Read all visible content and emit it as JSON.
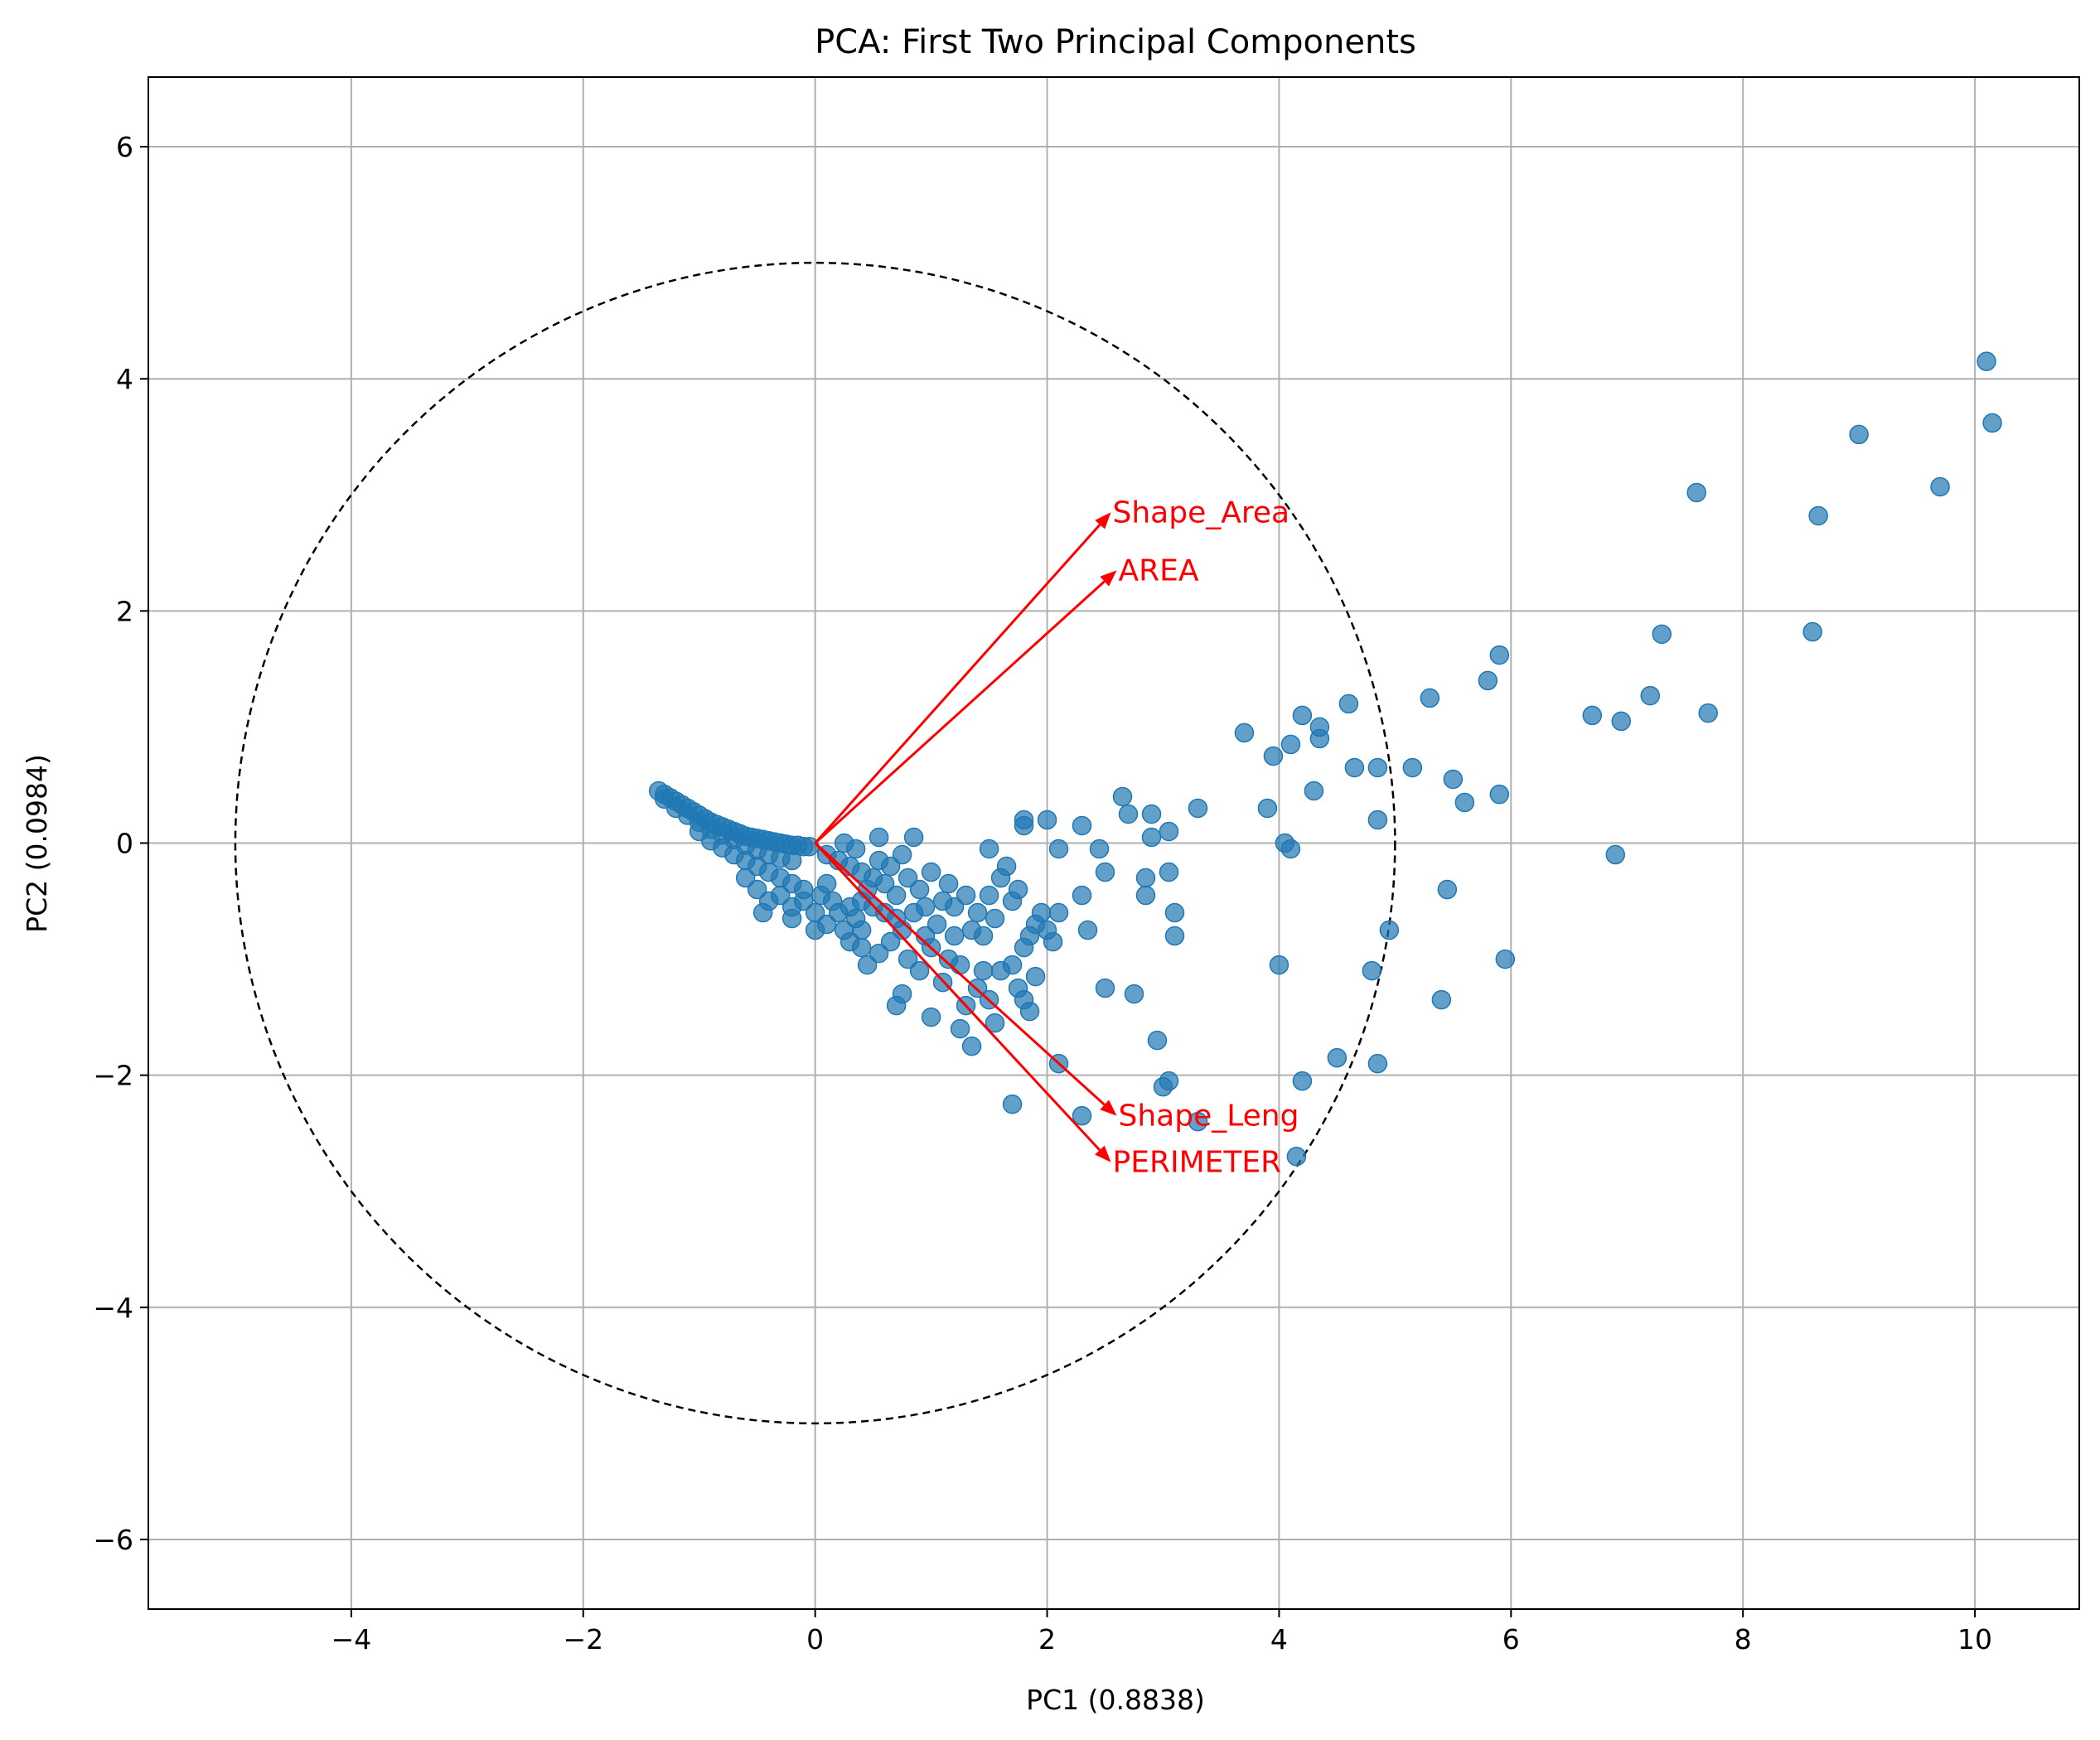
{
  "chart_data": {
    "type": "scatter",
    "title": "PCA: First Two Principal Components",
    "xlabel": "PC1 (0.8838)",
    "ylabel": "PC2 (0.0984)",
    "xlim": [
      -5.75,
      10.9
    ],
    "ylim": [
      -6.6,
      6.6
    ],
    "xticks": [
      -4,
      -2,
      0,
      2,
      4,
      6,
      8,
      10
    ],
    "yticks": [
      -6,
      -4,
      -2,
      0,
      2,
      4,
      6
    ],
    "xtick_labels": [
      "−4",
      "−2",
      "0",
      "2",
      "4",
      "6",
      "8",
      "10"
    ],
    "ytick_labels": [
      "−6",
      "−4",
      "−2",
      "0",
      "2",
      "4",
      "6"
    ],
    "grid": true,
    "point_color": "#1f77b4",
    "circle": {
      "center": [
        0,
        0
      ],
      "radius": 5,
      "style": "dashed",
      "color": "#000000"
    },
    "loadings_color": "#ff0000",
    "loadings": [
      {
        "name": "Shape_Area",
        "x": 2.55,
        "y": 2.85
      },
      {
        "name": "AREA",
        "x": 2.6,
        "y": 2.35
      },
      {
        "name": "Shape_Leng",
        "x": 2.6,
        "y": -2.35
      },
      {
        "name": "PERIMETER",
        "x": 2.55,
        "y": -2.75
      }
    ],
    "points": [
      [
        -1.35,
        0.45
      ],
      [
        -1.3,
        0.42
      ],
      [
        -1.25,
        0.39
      ],
      [
        -1.2,
        0.36
      ],
      [
        -1.15,
        0.33
      ],
      [
        -1.1,
        0.3
      ],
      [
        -1.05,
        0.27
      ],
      [
        -1.0,
        0.24
      ],
      [
        -0.95,
        0.21
      ],
      [
        -0.9,
        0.18
      ],
      [
        -0.85,
        0.16
      ],
      [
        -0.8,
        0.14
      ],
      [
        -0.75,
        0.12
      ],
      [
        -0.7,
        0.1
      ],
      [
        -0.65,
        0.08
      ],
      [
        -0.6,
        0.06
      ],
      [
        -0.55,
        0.05
      ],
      [
        -0.5,
        0.04
      ],
      [
        -0.45,
        0.03
      ],
      [
        -0.4,
        0.02
      ],
      [
        -0.35,
        0.01
      ],
      [
        -0.3,
        0.0
      ],
      [
        -0.25,
        -0.01
      ],
      [
        -0.2,
        -0.02
      ],
      [
        -0.15,
        -0.02
      ],
      [
        -0.1,
        -0.03
      ],
      [
        -0.05,
        -0.03
      ],
      [
        -1.3,
        0.38
      ],
      [
        -1.2,
        0.3
      ],
      [
        -1.1,
        0.24
      ],
      [
        -1.0,
        0.18
      ],
      [
        -0.9,
        0.12
      ],
      [
        -0.8,
        0.07
      ],
      [
        -0.7,
        0.03
      ],
      [
        -0.6,
        -0.02
      ],
      [
        -0.5,
        -0.06
      ],
      [
        -0.4,
        -0.1
      ],
      [
        -0.3,
        -0.13
      ],
      [
        -0.2,
        -0.15
      ],
      [
        -1.0,
        0.1
      ],
      [
        -0.9,
        0.02
      ],
      [
        -0.8,
        -0.04
      ],
      [
        -0.7,
        -0.1
      ],
      [
        -0.6,
        -0.15
      ],
      [
        -0.5,
        -0.2
      ],
      [
        -0.4,
        -0.25
      ],
      [
        -0.3,
        -0.3
      ],
      [
        -0.2,
        -0.35
      ],
      [
        -0.1,
        -0.4
      ],
      [
        -0.6,
        -0.3
      ],
      [
        -0.5,
        -0.4
      ],
      [
        -0.4,
        -0.5
      ],
      [
        -0.3,
        -0.45
      ],
      [
        -0.2,
        -0.55
      ],
      [
        -0.1,
        -0.5
      ],
      [
        0.0,
        -0.6
      ],
      [
        0.05,
        -0.45
      ],
      [
        0.1,
        -0.35
      ],
      [
        0.15,
        -0.5
      ],
      [
        -0.45,
        -0.6
      ],
      [
        -0.2,
        -0.65
      ],
      [
        0.0,
        -0.75
      ],
      [
        0.1,
        -0.7
      ],
      [
        0.2,
        -0.6
      ],
      [
        0.3,
        -0.55
      ],
      [
        0.25,
        -0.75
      ],
      [
        0.35,
        -0.65
      ],
      [
        0.4,
        -0.5
      ],
      [
        0.45,
        -0.4
      ],
      [
        0.1,
        -0.1
      ],
      [
        0.2,
        -0.15
      ],
      [
        0.3,
        -0.2
      ],
      [
        0.35,
        -0.05
      ],
      [
        0.4,
        -0.25
      ],
      [
        0.5,
        -0.3
      ],
      [
        0.55,
        -0.15
      ],
      [
        0.6,
        -0.35
      ],
      [
        0.65,
        -0.2
      ],
      [
        0.7,
        -0.45
      ],
      [
        0.25,
        0.0
      ],
      [
        0.55,
        0.05
      ],
      [
        0.85,
        0.05
      ],
      [
        0.75,
        -0.1
      ],
      [
        0.8,
        -0.3
      ],
      [
        0.9,
        -0.4
      ],
      [
        0.95,
        -0.55
      ],
      [
        0.5,
        -0.55
      ],
      [
        0.6,
        -0.6
      ],
      [
        0.7,
        -0.65
      ],
      [
        0.4,
        -0.9
      ],
      [
        0.45,
        -1.05
      ],
      [
        0.55,
        -0.95
      ],
      [
        0.65,
        -0.85
      ],
      [
        0.75,
        -0.75
      ],
      [
        0.8,
        -1.0
      ],
      [
        0.85,
        -0.6
      ],
      [
        0.95,
        -0.8
      ],
      [
        0.4,
        -0.75
      ],
      [
        0.3,
        -0.85
      ],
      [
        0.75,
        -1.3
      ],
      [
        0.7,
        -1.4
      ],
      [
        0.9,
        -1.1
      ],
      [
        1.0,
        -0.9
      ],
      [
        1.05,
        -0.7
      ],
      [
        1.1,
        -0.5
      ],
      [
        1.15,
        -0.35
      ],
      [
        1.0,
        -0.25
      ],
      [
        1.2,
        -0.55
      ],
      [
        1.3,
        -0.45
      ],
      [
        1.35,
        -0.75
      ],
      [
        1.4,
        -0.6
      ],
      [
        1.45,
        -0.8
      ],
      [
        1.5,
        -0.45
      ],
      [
        1.55,
        -0.65
      ],
      [
        1.6,
        -0.3
      ],
      [
        1.65,
        -0.2
      ],
      [
        1.5,
        -0.05
      ],
      [
        1.7,
        -0.5
      ],
      [
        1.75,
        -0.4
      ],
      [
        1.1,
        -1.2
      ],
      [
        1.15,
        -1.0
      ],
      [
        1.2,
        -0.8
      ],
      [
        1.25,
        -1.05
      ],
      [
        1.3,
        -1.4
      ],
      [
        1.25,
        -1.6
      ],
      [
        1.0,
        -1.5
      ],
      [
        1.4,
        -1.25
      ],
      [
        1.45,
        -1.1
      ],
      [
        1.5,
        -1.35
      ],
      [
        1.35,
        -1.75
      ],
      [
        1.55,
        -1.55
      ],
      [
        1.6,
        -1.1
      ],
      [
        1.7,
        -1.05
      ],
      [
        1.75,
        -1.25
      ],
      [
        1.8,
        -1.35
      ],
      [
        1.85,
        -1.45
      ],
      [
        1.9,
        -1.15
      ],
      [
        1.8,
        -0.9
      ],
      [
        1.85,
        -0.8
      ],
      [
        1.9,
        -0.7
      ],
      [
        1.95,
        -0.6
      ],
      [
        2.0,
        -0.75
      ],
      [
        2.05,
        -0.85
      ],
      [
        2.1,
        -0.6
      ],
      [
        1.8,
        0.15
      ],
      [
        1.8,
        0.2
      ],
      [
        2.0,
        0.2
      ],
      [
        2.1,
        -0.05
      ],
      [
        2.3,
        0.15
      ],
      [
        2.3,
        -0.45
      ],
      [
        2.35,
        -0.75
      ],
      [
        2.45,
        -0.05
      ],
      [
        2.5,
        -0.25
      ],
      [
        2.5,
        -1.25
      ],
      [
        2.65,
        0.4
      ],
      [
        2.7,
        0.25
      ],
      [
        2.75,
        -1.3
      ],
      [
        2.85,
        -0.3
      ],
      [
        2.85,
        -0.45
      ],
      [
        2.9,
        0.05
      ],
      [
        2.9,
        0.25
      ],
      [
        2.95,
        -1.7
      ],
      [
        3.0,
        -2.1
      ],
      [
        3.05,
        0.1
      ],
      [
        3.05,
        -2.05
      ],
      [
        3.1,
        -0.6
      ],
      [
        3.1,
        -0.8
      ],
      [
        3.05,
        -0.25
      ],
      [
        3.3,
        0.3
      ],
      [
        3.3,
        -2.4
      ],
      [
        2.1,
        -1.9
      ],
      [
        2.3,
        -2.35
      ],
      [
        1.7,
        -2.25
      ],
      [
        3.7,
        0.95
      ],
      [
        3.9,
        0.3
      ],
      [
        3.95,
        0.75
      ],
      [
        4.0,
        -1.05
      ],
      [
        4.05,
        0.0
      ],
      [
        4.1,
        0.85
      ],
      [
        4.1,
        -0.05
      ],
      [
        4.15,
        -2.7
      ],
      [
        4.2,
        -2.05
      ],
      [
        4.2,
        1.1
      ],
      [
        4.3,
        0.45
      ],
      [
        4.35,
        0.9
      ],
      [
        4.35,
        1.0
      ],
      [
        4.5,
        -1.85
      ],
      [
        4.6,
        1.2
      ],
      [
        4.65,
        0.65
      ],
      [
        4.8,
        -1.1
      ],
      [
        4.85,
        0.2
      ],
      [
        4.85,
        0.65
      ],
      [
        4.85,
        -1.9
      ],
      [
        4.95,
        -0.75
      ],
      [
        5.15,
        0.65
      ],
      [
        5.3,
        1.25
      ],
      [
        5.4,
        -1.35
      ],
      [
        5.45,
        -0.4
      ],
      [
        5.5,
        0.55
      ],
      [
        5.6,
        0.35
      ],
      [
        5.8,
        1.4
      ],
      [
        5.9,
        1.62
      ],
      [
        5.9,
        0.42
      ],
      [
        5.95,
        -1.0
      ],
      [
        6.7,
        1.1
      ],
      [
        6.9,
        -0.1
      ],
      [
        6.95,
        1.05
      ],
      [
        7.2,
        1.27
      ],
      [
        7.3,
        1.8
      ],
      [
        7.6,
        3.02
      ],
      [
        7.7,
        1.12
      ],
      [
        8.6,
        1.82
      ],
      [
        8.65,
        2.82
      ],
      [
        9.0,
        3.52
      ],
      [
        9.7,
        3.07
      ],
      [
        10.1,
        4.15
      ],
      [
        10.15,
        3.62
      ]
    ]
  }
}
